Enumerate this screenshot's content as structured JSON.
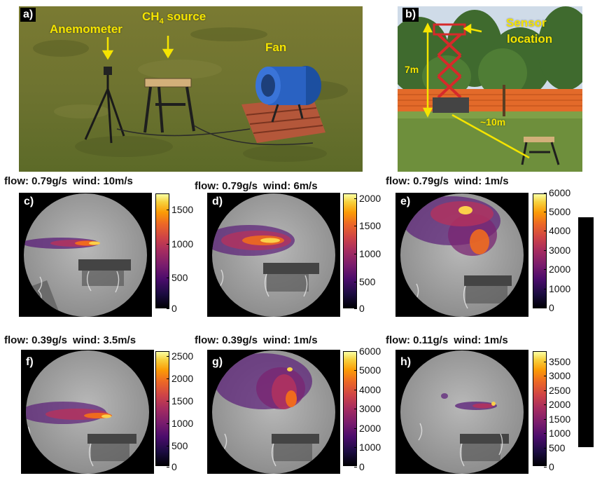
{
  "photo_a": {
    "letter": "a)",
    "labels": {
      "anemometer": "Anemometer",
      "source_prefix": "CH",
      "source_sub": "4",
      "source_suffix": " source",
      "fan": "Fan"
    }
  },
  "photo_b": {
    "letter": "b)",
    "labels": {
      "sensor_line1": "Sensor",
      "sensor_line2": "location",
      "height": "7m",
      "distance": "~10m"
    }
  },
  "panels": [
    {
      "letter": "c)",
      "flow": "flow: 0.79g/s",
      "wind": "wind: 10m/s",
      "ticks": [
        "1500",
        "1000",
        "500",
        "0"
      ]
    },
    {
      "letter": "d)",
      "flow": "flow: 0.79g/s",
      "wind": "wind: 6m/s",
      "ticks": [
        "2000",
        "1500",
        "1000",
        "500",
        "0"
      ]
    },
    {
      "letter": "e)",
      "flow": "flow: 0.79g/s",
      "wind": "wind: 1m/s",
      "ticks": [
        "6000",
        "5000",
        "4000",
        "3000",
        "2000",
        "1000",
        "0"
      ]
    },
    {
      "letter": "f)",
      "flow": "flow: 0.39g/s",
      "wind": "wind: 3.5m/s",
      "ticks": [
        "2500",
        "2000",
        "1500",
        "1000",
        "500",
        "0"
      ]
    },
    {
      "letter": "g)",
      "flow": "flow: 0.39g/s",
      "wind": "wind: 1m/s",
      "ticks": [
        "6000",
        "5000",
        "4000",
        "3000",
        "2000",
        "1000",
        "0"
      ]
    },
    {
      "letter": "h)",
      "flow": "flow: 0.11g/s",
      "wind": "wind: 1m/s",
      "ticks": [
        "3500",
        "3000",
        "2500",
        "2000",
        "1500",
        "1000",
        "500",
        "0"
      ]
    }
  ],
  "colormap": "inferno",
  "colors": {
    "annotation": "#f5e400",
    "grass": "#6f7a2c",
    "lift": "#d62a2a"
  }
}
